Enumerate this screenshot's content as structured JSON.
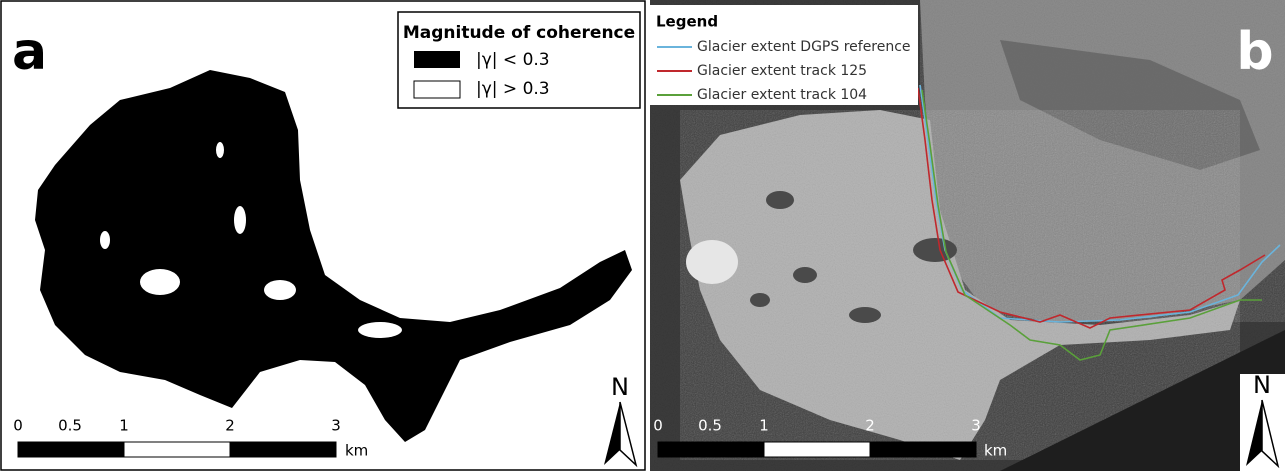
{
  "panel_a": {
    "label": "a",
    "legend": {
      "title": "Magnitude of coherence",
      "items": [
        "|γ| < 0.3",
        "|γ| > 0.3"
      ]
    },
    "scale_bar": {
      "ticks": [
        "0",
        "0.5",
        "1",
        "2",
        "3"
      ],
      "unit": "km"
    },
    "north": "N"
  },
  "panel_b": {
    "label": "b",
    "legend": {
      "title": "Legend",
      "items": [
        {
          "name": "Glacier extent DGPS reference",
          "color": "#6ab4dc"
        },
        {
          "name": "Glacier extent track 125",
          "color": "#c0282d"
        },
        {
          "name": "Glacier extent track 104",
          "color": "#5aa03a"
        }
      ]
    },
    "scale_bar": {
      "ticks": [
        "0",
        "0.5",
        "1",
        "2",
        "3"
      ],
      "unit": "km"
    },
    "north": "N"
  }
}
